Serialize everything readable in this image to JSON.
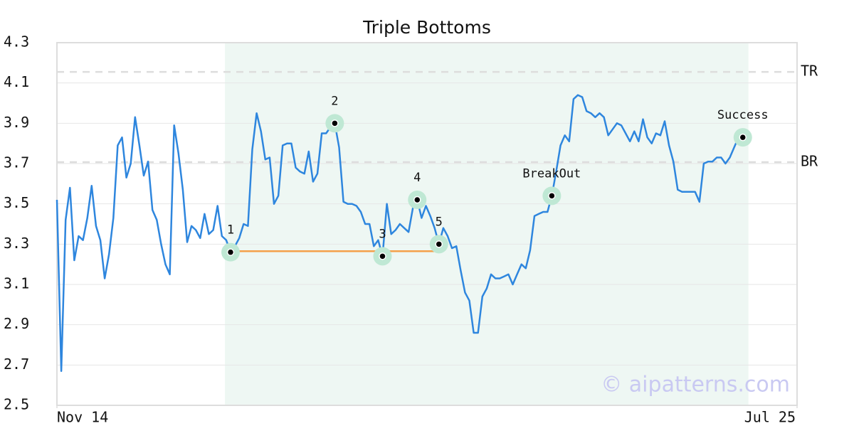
{
  "chart_data": {
    "type": "line",
    "title": "Triple Bottoms",
    "x": [
      0,
      1,
      2,
      3,
      4,
      5,
      6,
      7,
      8,
      9,
      10,
      11,
      12,
      13,
      14,
      15,
      16,
      17,
      18,
      19,
      20,
      21,
      22,
      23,
      24,
      25,
      26,
      27,
      28,
      29,
      30,
      31,
      32,
      33,
      34,
      35,
      36,
      37,
      38,
      39,
      40,
      41,
      42,
      43,
      44,
      45,
      46,
      47,
      48,
      49,
      50,
      51,
      52,
      53,
      54,
      55,
      56,
      57,
      58,
      59,
      60,
      61,
      62,
      63,
      64,
      65,
      66,
      67,
      68,
      69,
      70,
      71,
      72,
      73,
      74,
      75,
      76,
      77,
      78,
      79,
      80,
      81,
      82,
      83,
      84,
      85,
      86,
      87,
      88,
      89,
      90,
      91,
      92,
      93,
      94,
      95,
      96,
      97,
      98,
      99,
      100,
      101,
      102,
      103,
      104,
      105,
      106,
      107,
      108,
      109,
      110,
      111,
      112,
      113,
      114,
      115,
      116,
      117,
      118,
      119,
      120,
      121,
      122,
      123,
      124,
      125,
      126,
      127,
      128,
      129,
      130,
      131,
      132,
      133,
      134,
      135,
      136,
      137,
      138,
      139,
      140,
      141,
      142,
      143,
      144,
      145,
      146,
      147,
      148,
      149,
      150,
      151,
      152,
      153,
      154,
      155,
      156,
      157,
      158,
      159
    ],
    "values": [
      3.52,
      2.67,
      3.42,
      3.58,
      3.22,
      3.34,
      3.32,
      3.43,
      3.59,
      3.39,
      3.32,
      3.13,
      3.25,
      3.43,
      3.79,
      3.83,
      3.63,
      3.7,
      3.93,
      3.79,
      3.64,
      3.71,
      3.47,
      3.42,
      3.3,
      3.2,
      3.15,
      3.89,
      3.75,
      3.57,
      3.31,
      3.39,
      3.37,
      3.33,
      3.45,
      3.35,
      3.37,
      3.49,
      3.34,
      3.32,
      3.26,
      3.29,
      3.33,
      3.4,
      3.39,
      3.77,
      3.95,
      3.86,
      3.72,
      3.73,
      3.5,
      3.54,
      3.79,
      3.8,
      3.8,
      3.68,
      3.66,
      3.65,
      3.76,
      3.61,
      3.65,
      3.85,
      3.85,
      3.88,
      3.9,
      3.78,
      3.51,
      3.5,
      3.5,
      3.49,
      3.46,
      3.4,
      3.4,
      3.29,
      3.32,
      3.24,
      3.5,
      3.35,
      3.37,
      3.4,
      3.38,
      3.36,
      3.48,
      3.52,
      3.43,
      3.49,
      3.44,
      3.38,
      3.3,
      3.38,
      3.34,
      3.28,
      3.29,
      3.17,
      3.06,
      3.02,
      2.86,
      2.86,
      3.04,
      3.08,
      3.15,
      3.13,
      3.13,
      3.14,
      3.15,
      3.1,
      3.15,
      3.2,
      3.18,
      3.27,
      3.44,
      3.45,
      3.46,
      3.46,
      3.54,
      3.66,
      3.79,
      3.84,
      3.81,
      4.02,
      4.04,
      4.03,
      3.96,
      3.95,
      3.93,
      3.95,
      3.93,
      3.84,
      3.87,
      3.9,
      3.89,
      3.85,
      3.81,
      3.86,
      3.81,
      3.92,
      3.83,
      3.8,
      3.85,
      3.84,
      3.91,
      3.79,
      3.71,
      3.57,
      3.56,
      3.56,
      3.56,
      3.56,
      3.51,
      3.7,
      3.71,
      3.71,
      3.73,
      3.73,
      3.7,
      3.73,
      3.78,
      3.83,
      3.83,
      3.83
    ],
    "color": "#2e86de",
    "xlim": [
      0,
      170.5
    ],
    "xticks": [
      {
        "value": 0,
        "label": "Nov 14"
      },
      {
        "value": 170.5,
        "label": "Jul 25"
      }
    ],
    "ylim": [
      2.5,
      4.3
    ],
    "yticks": [
      2.5,
      2.7,
      2.9,
      3.1,
      3.3,
      3.5,
      3.7,
      3.9,
      4.1,
      4.3
    ],
    "grid": true,
    "highlight": {
      "x": [
        38.7,
        159.3
      ],
      "color": "#eef7f3"
    },
    "support_line": {
      "x": [
        40,
        88
      ],
      "y": 3.265,
      "color": "#f4a04a"
    },
    "hlines": [
      {
        "label": "TR",
        "y": 4.155
      },
      {
        "label": "BR",
        "y": 3.707
      }
    ],
    "annotations": [
      {
        "label": "1",
        "x": 40,
        "y": 3.26
      },
      {
        "label": "2",
        "x": 64,
        "y": 3.9
      },
      {
        "label": "3",
        "x": 75,
        "y": 3.24
      },
      {
        "label": "4",
        "x": 83,
        "y": 3.52
      },
      {
        "label": "5",
        "x": 88,
        "y": 3.3
      },
      {
        "label": "BreakOut",
        "x": 114,
        "y": 3.54
      },
      {
        "label": "Success",
        "x": 158,
        "y": 3.83
      }
    ],
    "watermark": "© aipatterns.com"
  }
}
